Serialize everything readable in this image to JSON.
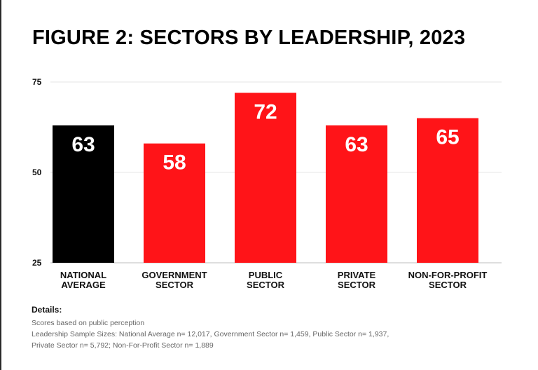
{
  "chart_data": {
    "type": "bar",
    "title": "FIGURE 2: SECTORS BY LEADERSHIP, 2023",
    "xlabel": "",
    "ylabel": "",
    "ylim": [
      25,
      75
    ],
    "yticks": [
      75,
      50,
      25
    ],
    "grid": true,
    "categories": [
      [
        "NATIONAL",
        "AVERAGE"
      ],
      [
        "GOVERNMENT",
        "SECTOR"
      ],
      [
        "PUBLIC",
        "SECTOR"
      ],
      [
        "PRIVATE",
        "SECTOR"
      ],
      [
        "NON-FOR-PROFIT",
        "SECTOR"
      ]
    ],
    "values": [
      63,
      58,
      72,
      63,
      65
    ],
    "data_labels": [
      "63",
      "58",
      "72",
      "63",
      "65"
    ],
    "colors": [
      "#000000",
      "#ff1418",
      "#ff1418",
      "#ff1418",
      "#ff1418"
    ]
  },
  "details": {
    "heading": "Details:",
    "lines": [
      "Scores based on public perception",
      "Leadership Sample Sizes: National Average  n= 12,017, Government Sector n= 1,459, Public Sector n= 1,937,",
      "Private Sector n= 5,792; Non-For-Profit Sector n= 1,889"
    ]
  }
}
